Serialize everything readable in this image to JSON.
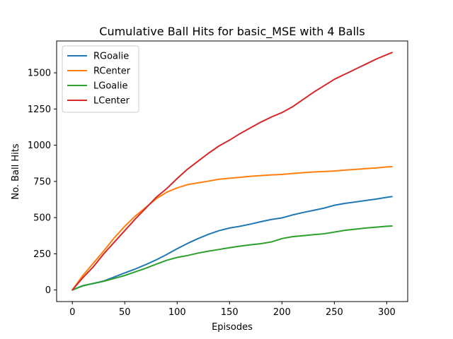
{
  "chart_data": {
    "type": "line",
    "title": "Cumulative Ball Hits for basic_MSE with 4 Balls",
    "xlabel": "Episodes",
    "ylabel": "No. Ball Hits",
    "xlim": [
      -15,
      320
    ],
    "ylim": [
      -80,
      1720
    ],
    "xticks": [
      0,
      50,
      100,
      150,
      200,
      250,
      300
    ],
    "yticks": [
      0,
      250,
      500,
      750,
      1000,
      1250,
      1500
    ],
    "xtick_labels": [
      "0",
      "50",
      "100",
      "150",
      "200",
      "250",
      "300"
    ],
    "ytick_labels": [
      "0",
      "250",
      "500",
      "750",
      "1000",
      "1250",
      "1500"
    ],
    "grid": false,
    "legend_position": "top-left",
    "series": [
      {
        "name": "RGoalie",
        "color": "#1f77b4",
        "x": [
          0,
          10,
          20,
          30,
          40,
          50,
          60,
          70,
          80,
          90,
          100,
          110,
          120,
          130,
          140,
          150,
          160,
          170,
          180,
          190,
          200,
          210,
          220,
          230,
          240,
          250,
          260,
          270,
          280,
          290,
          300,
          305
        ],
        "y": [
          0,
          30,
          45,
          62,
          90,
          118,
          145,
          175,
          208,
          245,
          285,
          322,
          355,
          385,
          410,
          428,
          440,
          455,
          472,
          487,
          498,
          518,
          535,
          550,
          565,
          585,
          598,
          608,
          618,
          628,
          640,
          645
        ]
      },
      {
        "name": "RCenter",
        "color": "#ff7f0e",
        "x": [
          0,
          10,
          20,
          30,
          40,
          50,
          60,
          70,
          80,
          90,
          100,
          110,
          120,
          130,
          140,
          150,
          160,
          170,
          180,
          190,
          200,
          210,
          220,
          230,
          240,
          250,
          260,
          270,
          280,
          290,
          300,
          305
        ],
        "y": [
          0,
          100,
          185,
          270,
          360,
          440,
          510,
          570,
          630,
          675,
          705,
          728,
          740,
          752,
          765,
          772,
          778,
          785,
          790,
          795,
          798,
          805,
          810,
          815,
          818,
          822,
          828,
          833,
          838,
          843,
          850,
          852
        ]
      },
      {
        "name": "LGoalie",
        "color": "#2ca02c",
        "x": [
          0,
          10,
          20,
          30,
          40,
          50,
          60,
          70,
          80,
          90,
          100,
          110,
          120,
          130,
          140,
          150,
          160,
          170,
          180,
          190,
          200,
          210,
          220,
          230,
          240,
          250,
          260,
          270,
          280,
          290,
          300,
          305
        ],
        "y": [
          0,
          28,
          45,
          60,
          80,
          100,
          125,
          150,
          178,
          205,
          225,
          238,
          255,
          268,
          280,
          292,
          303,
          312,
          320,
          332,
          355,
          368,
          375,
          382,
          388,
          400,
          412,
          420,
          428,
          434,
          440,
          442
        ]
      },
      {
        "name": "LCenter",
        "color": "#d62728",
        "x": [
          0,
          10,
          20,
          30,
          40,
          50,
          60,
          70,
          80,
          90,
          100,
          110,
          120,
          130,
          140,
          150,
          160,
          170,
          180,
          190,
          200,
          210,
          220,
          230,
          240,
          250,
          260,
          270,
          280,
          290,
          300,
          305
        ],
        "y": [
          0,
          85,
          160,
          250,
          330,
          410,
          490,
          565,
          640,
          700,
          770,
          835,
          890,
          945,
          995,
          1035,
          1080,
          1120,
          1160,
          1195,
          1225,
          1265,
          1315,
          1365,
          1410,
          1455,
          1490,
          1525,
          1560,
          1595,
          1625,
          1640
        ]
      }
    ]
  }
}
